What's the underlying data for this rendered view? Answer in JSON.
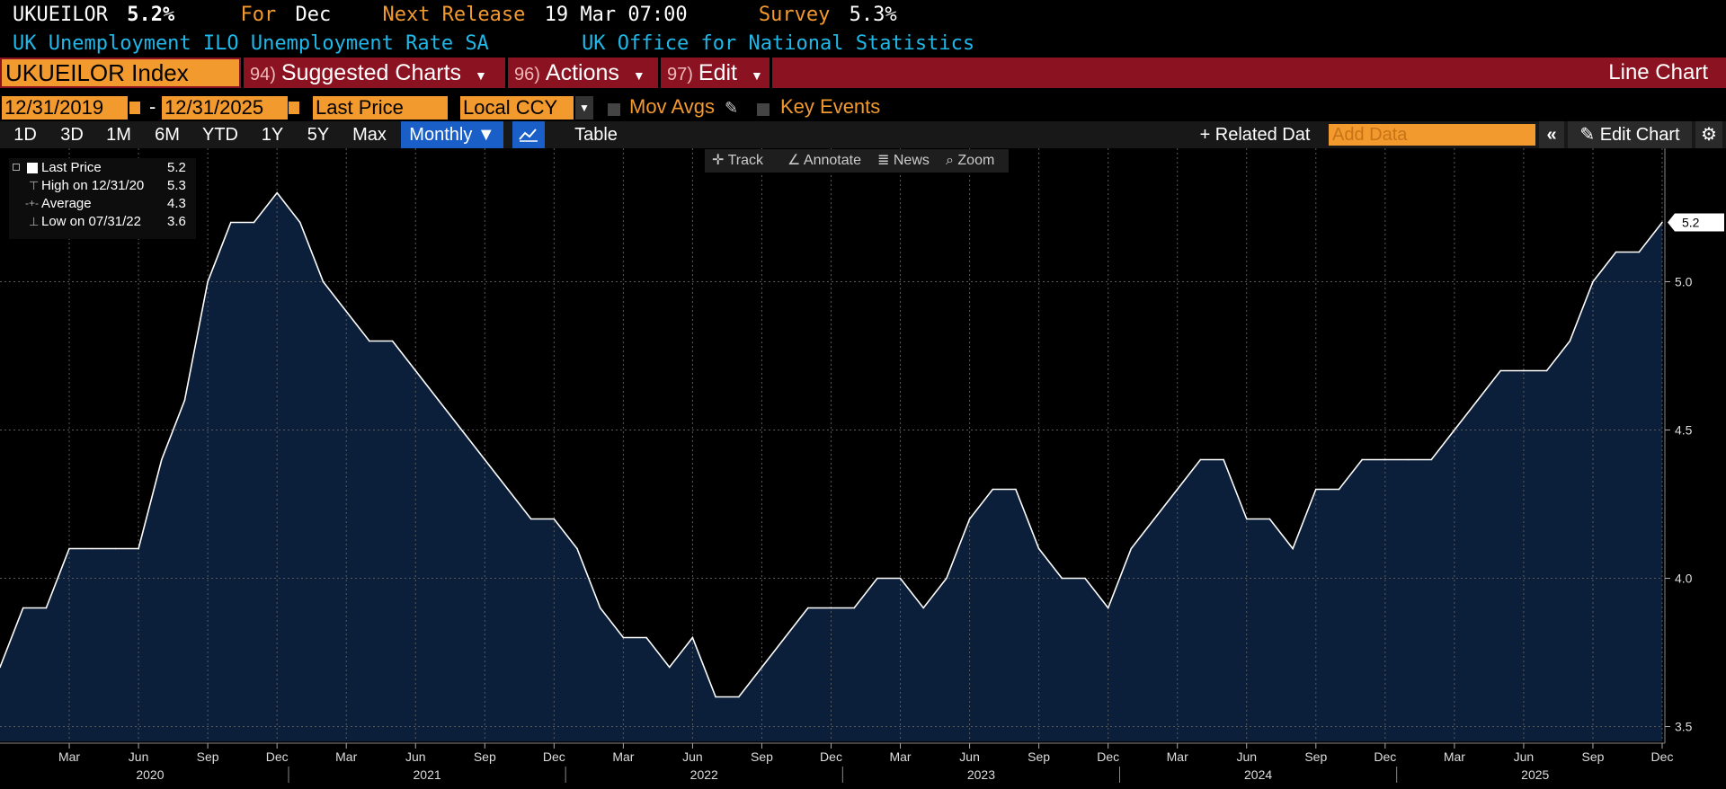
{
  "header": {
    "ticker": "UKUEILOR",
    "last_value": "5.2%",
    "for_label": "For",
    "for_value": "Dec",
    "next_release_label": "Next Release",
    "next_release_value": "19 Mar 07:00",
    "survey_label": "Survey",
    "survey_value": "5.3%",
    "description": "UK Unemployment ILO Unemployment Rate SA",
    "source": "UK Office for National Statistics"
  },
  "command_bar": {
    "security": "UKUEILOR Index",
    "suggested_num": "94)",
    "suggested_label": "Suggested Charts",
    "actions_num": "96)",
    "actions_label": "Actions",
    "edit_num": "97)",
    "edit_label": "Edit",
    "chart_type": "Line Chart"
  },
  "controls": {
    "start_date": "12/31/2019",
    "date_separator": "-",
    "end_date": "12/31/2025",
    "field": "Last Price",
    "currency": "Local CCY",
    "mov_avgs": "Mov Avgs",
    "key_events": "Key Events"
  },
  "periods": [
    "1D",
    "3D",
    "1M",
    "6M",
    "YTD",
    "1Y",
    "5Y",
    "Max"
  ],
  "frequency": "Monthly ▼",
  "table_label": "Table",
  "related_data": "+ Related Dat",
  "add_data_placeholder": "Add Data",
  "edit_chart": "Edit Chart",
  "chart_toolbar": {
    "track": "Track",
    "annotate": "Annotate",
    "news": "News",
    "zoom": "Zoom"
  },
  "legend": {
    "last_price_label": "Last Price",
    "last_price_value": "5.2",
    "high_label": "High on 12/31/20",
    "high_value": "5.3",
    "average_label": "Average",
    "average_value": "4.3",
    "low_label": "Low on 07/31/22",
    "low_value": "3.6"
  },
  "last_value_tag": "5.2",
  "colors": {
    "accent": "#f39a2e",
    "cyan": "#1fb8e8",
    "red_bar": "#8b1220",
    "area_fill": "#0b1f3a",
    "line": "#ffffff"
  },
  "chart_data": {
    "type": "area",
    "series": [
      {
        "name": "Last Price",
        "x": [
          "2019-12",
          "2020-01",
          "2020-02",
          "2020-03",
          "2020-04",
          "2020-05",
          "2020-06",
          "2020-07",
          "2020-08",
          "2020-09",
          "2020-10",
          "2020-11",
          "2020-12",
          "2021-01",
          "2021-02",
          "2021-03",
          "2021-04",
          "2021-05",
          "2021-06",
          "2021-07",
          "2021-08",
          "2021-09",
          "2021-10",
          "2021-11",
          "2021-12",
          "2022-01",
          "2022-02",
          "2022-03",
          "2022-04",
          "2022-05",
          "2022-06",
          "2022-07",
          "2022-08",
          "2022-09",
          "2022-10",
          "2022-11",
          "2022-12",
          "2023-01",
          "2023-02",
          "2023-03",
          "2023-04",
          "2023-05",
          "2023-06",
          "2023-07",
          "2023-08",
          "2023-09",
          "2023-10",
          "2023-11",
          "2023-12",
          "2024-01",
          "2024-02",
          "2024-03",
          "2024-04",
          "2024-05",
          "2024-06",
          "2024-07",
          "2024-08",
          "2024-09",
          "2024-10",
          "2024-11",
          "2024-12",
          "2025-01",
          "2025-02",
          "2025-03",
          "2025-04",
          "2025-05",
          "2025-06",
          "2025-07",
          "2025-08",
          "2025-09",
          "2025-10",
          "2025-11",
          "2025-12"
        ],
        "values": [
          3.7,
          3.9,
          3.9,
          4.1,
          4.1,
          4.1,
          4.1,
          4.4,
          4.6,
          5.0,
          5.2,
          5.2,
          5.3,
          5.2,
          5.0,
          4.9,
          4.8,
          4.8,
          4.7,
          4.6,
          4.5,
          4.4,
          4.3,
          4.2,
          4.2,
          4.1,
          3.9,
          3.8,
          3.8,
          3.7,
          3.8,
          3.6,
          3.6,
          3.7,
          3.8,
          3.9,
          3.9,
          3.9,
          4.0,
          4.0,
          3.9,
          4.0,
          4.2,
          4.3,
          4.3,
          4.1,
          4.0,
          4.0,
          3.9,
          4.1,
          4.2,
          4.3,
          4.4,
          4.4,
          4.2,
          4.2,
          4.1,
          4.3,
          4.3,
          4.4,
          4.4,
          4.4,
          4.4,
          4.5,
          4.6,
          4.7,
          4.7,
          4.7,
          4.8,
          5.0,
          5.1,
          5.1,
          5.2
        ]
      }
    ],
    "y_ticks": [
      "3.5",
      "4.0",
      "4.5",
      "5.0"
    ],
    "ylim": [
      3.45,
      5.45
    ],
    "x_ticks": [
      {
        "month": "2020-03",
        "label": "Mar"
      },
      {
        "month": "2020-06",
        "label": "Jun"
      },
      {
        "month": "2020-09",
        "label": "Sep"
      },
      {
        "month": "2020-12",
        "label": "Dec"
      },
      {
        "month": "2021-03",
        "label": "Mar"
      },
      {
        "month": "2021-06",
        "label": "Jun"
      },
      {
        "month": "2021-09",
        "label": "Sep"
      },
      {
        "month": "2021-12",
        "label": "Dec"
      },
      {
        "month": "2022-03",
        "label": "Mar"
      },
      {
        "month": "2022-06",
        "label": "Jun"
      },
      {
        "month": "2022-09",
        "label": "Sep"
      },
      {
        "month": "2022-12",
        "label": "Dec"
      },
      {
        "month": "2023-03",
        "label": "Mar"
      },
      {
        "month": "2023-06",
        "label": "Jun"
      },
      {
        "month": "2023-09",
        "label": "Sep"
      },
      {
        "month": "2023-12",
        "label": "Dec"
      },
      {
        "month": "2024-03",
        "label": "Mar"
      },
      {
        "month": "2024-06",
        "label": "Jun"
      },
      {
        "month": "2024-09",
        "label": "Sep"
      },
      {
        "month": "2024-12",
        "label": "Dec"
      },
      {
        "month": "2025-03",
        "label": "Mar"
      },
      {
        "month": "2025-06",
        "label": "Jun"
      },
      {
        "month": "2025-09",
        "label": "Sep"
      },
      {
        "month": "2025-12",
        "label": "Dec"
      }
    ],
    "years": [
      "2020",
      "2021",
      "2022",
      "2023",
      "2024",
      "2025"
    ],
    "grid": true
  }
}
